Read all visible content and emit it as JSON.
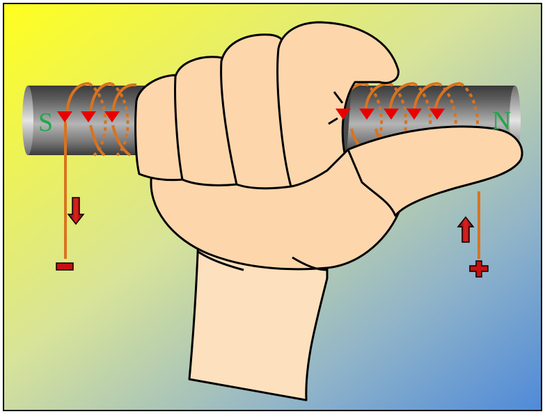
{
  "diagram": {
    "pole_left": "S",
    "pole_right": "N",
    "terminal_left": "−",
    "terminal_right": "+",
    "colors": {
      "background_top_left": "#ffff1e",
      "background_bottom_right": "#4f8ad9",
      "rod_dark": "#3d3d3d",
      "rod_light": "#c9c9c9",
      "coil": "#d9731f",
      "current_arrow": "#e80000",
      "flow_arrow": "#b40f0f",
      "pole_label": "#1fa84a",
      "skin": "#fdd6ac",
      "outline": "#000000"
    },
    "icons": [
      "current-direction-arrow",
      "flow-arrow-down",
      "flow-arrow-up"
    ]
  }
}
